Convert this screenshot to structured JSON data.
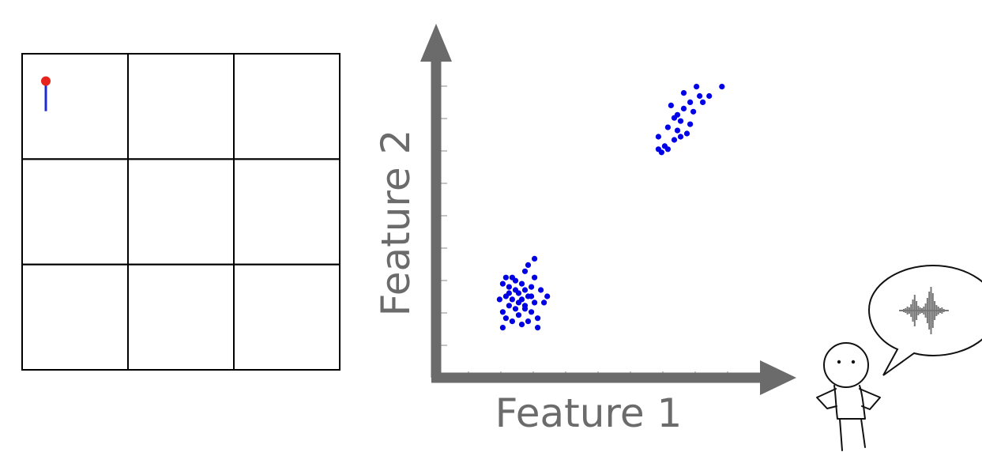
{
  "grid": {
    "rows": 3,
    "cols": 3,
    "marker": {
      "cell_row": 0,
      "cell_col": 0,
      "color": "#e8221d",
      "stem_color": "#1f2bd6"
    }
  },
  "chart_data": {
    "type": "scatter",
    "xlabel": "Feature 1",
    "ylabel": "Feature 2",
    "xlim": [
      0,
      10
    ],
    "ylim": [
      0,
      10
    ],
    "axis_color": "#6b6b6b",
    "point_color": "#0000e6",
    "series": [
      {
        "points": [
          [
            2.0,
            2.4
          ],
          [
            2.3,
            2.6
          ],
          [
            2.1,
            2.1
          ],
          [
            2.5,
            2.3
          ],
          [
            1.9,
            2.8
          ],
          [
            2.6,
            2.0
          ],
          [
            2.2,
            3.0
          ],
          [
            2.8,
            2.7
          ],
          [
            2.4,
            1.8
          ],
          [
            2.7,
            2.4
          ],
          [
            2.0,
            1.7
          ],
          [
            2.9,
            2.2
          ],
          [
            2.3,
            2.9
          ],
          [
            2.6,
            3.2
          ],
          [
            2.1,
            2.5
          ],
          [
            2.5,
            1.5
          ],
          [
            3.1,
            2.6
          ],
          [
            2.8,
            1.9
          ],
          [
            1.8,
            2.3
          ],
          [
            2.4,
            2.2
          ],
          [
            2.2,
            1.6
          ],
          [
            3.0,
            1.7
          ],
          [
            2.7,
            3.4
          ],
          [
            2.0,
            3.0
          ],
          [
            2.9,
            3.0
          ],
          [
            3.2,
            2.2
          ],
          [
            2.3,
            2.0
          ],
          [
            2.6,
            2.6
          ],
          [
            1.9,
            1.9
          ],
          [
            2.5,
            2.8
          ],
          [
            3.0,
            1.4
          ],
          [
            2.4,
            2.5
          ],
          [
            2.1,
            2.7
          ],
          [
            2.8,
            2.4
          ],
          [
            2.7,
            1.6
          ],
          [
            3.3,
            2.4
          ],
          [
            2.2,
            2.3
          ],
          [
            1.9,
            1.4
          ],
          [
            2.6,
            2.1
          ],
          [
            2.9,
            3.6
          ]
        ]
      },
      {
        "points": [
          [
            6.8,
            7.5
          ],
          [
            7.1,
            7.8
          ],
          [
            7.3,
            8.1
          ],
          [
            7.6,
            8.4
          ],
          [
            7.0,
            7.2
          ],
          [
            7.4,
            7.7
          ],
          [
            7.8,
            8.6
          ],
          [
            8.1,
            8.8
          ],
          [
            7.2,
            8.5
          ],
          [
            7.5,
            8.0
          ],
          [
            6.9,
            7.0
          ],
          [
            7.7,
            7.6
          ],
          [
            7.9,
            8.3
          ],
          [
            8.4,
            8.8
          ],
          [
            7.3,
            7.4
          ],
          [
            7.6,
            8.9
          ],
          [
            8.8,
            9.1
          ],
          [
            7.4,
            8.2
          ],
          [
            7.1,
            7.1
          ],
          [
            7.8,
            7.9
          ],
          [
            8.2,
            8.6
          ],
          [
            6.8,
            7.1
          ],
          [
            7.5,
            7.5
          ],
          [
            8.0,
            9.1
          ]
        ]
      }
    ]
  },
  "figure": {
    "speech_bubble": true,
    "waveform_color": "#777777"
  }
}
